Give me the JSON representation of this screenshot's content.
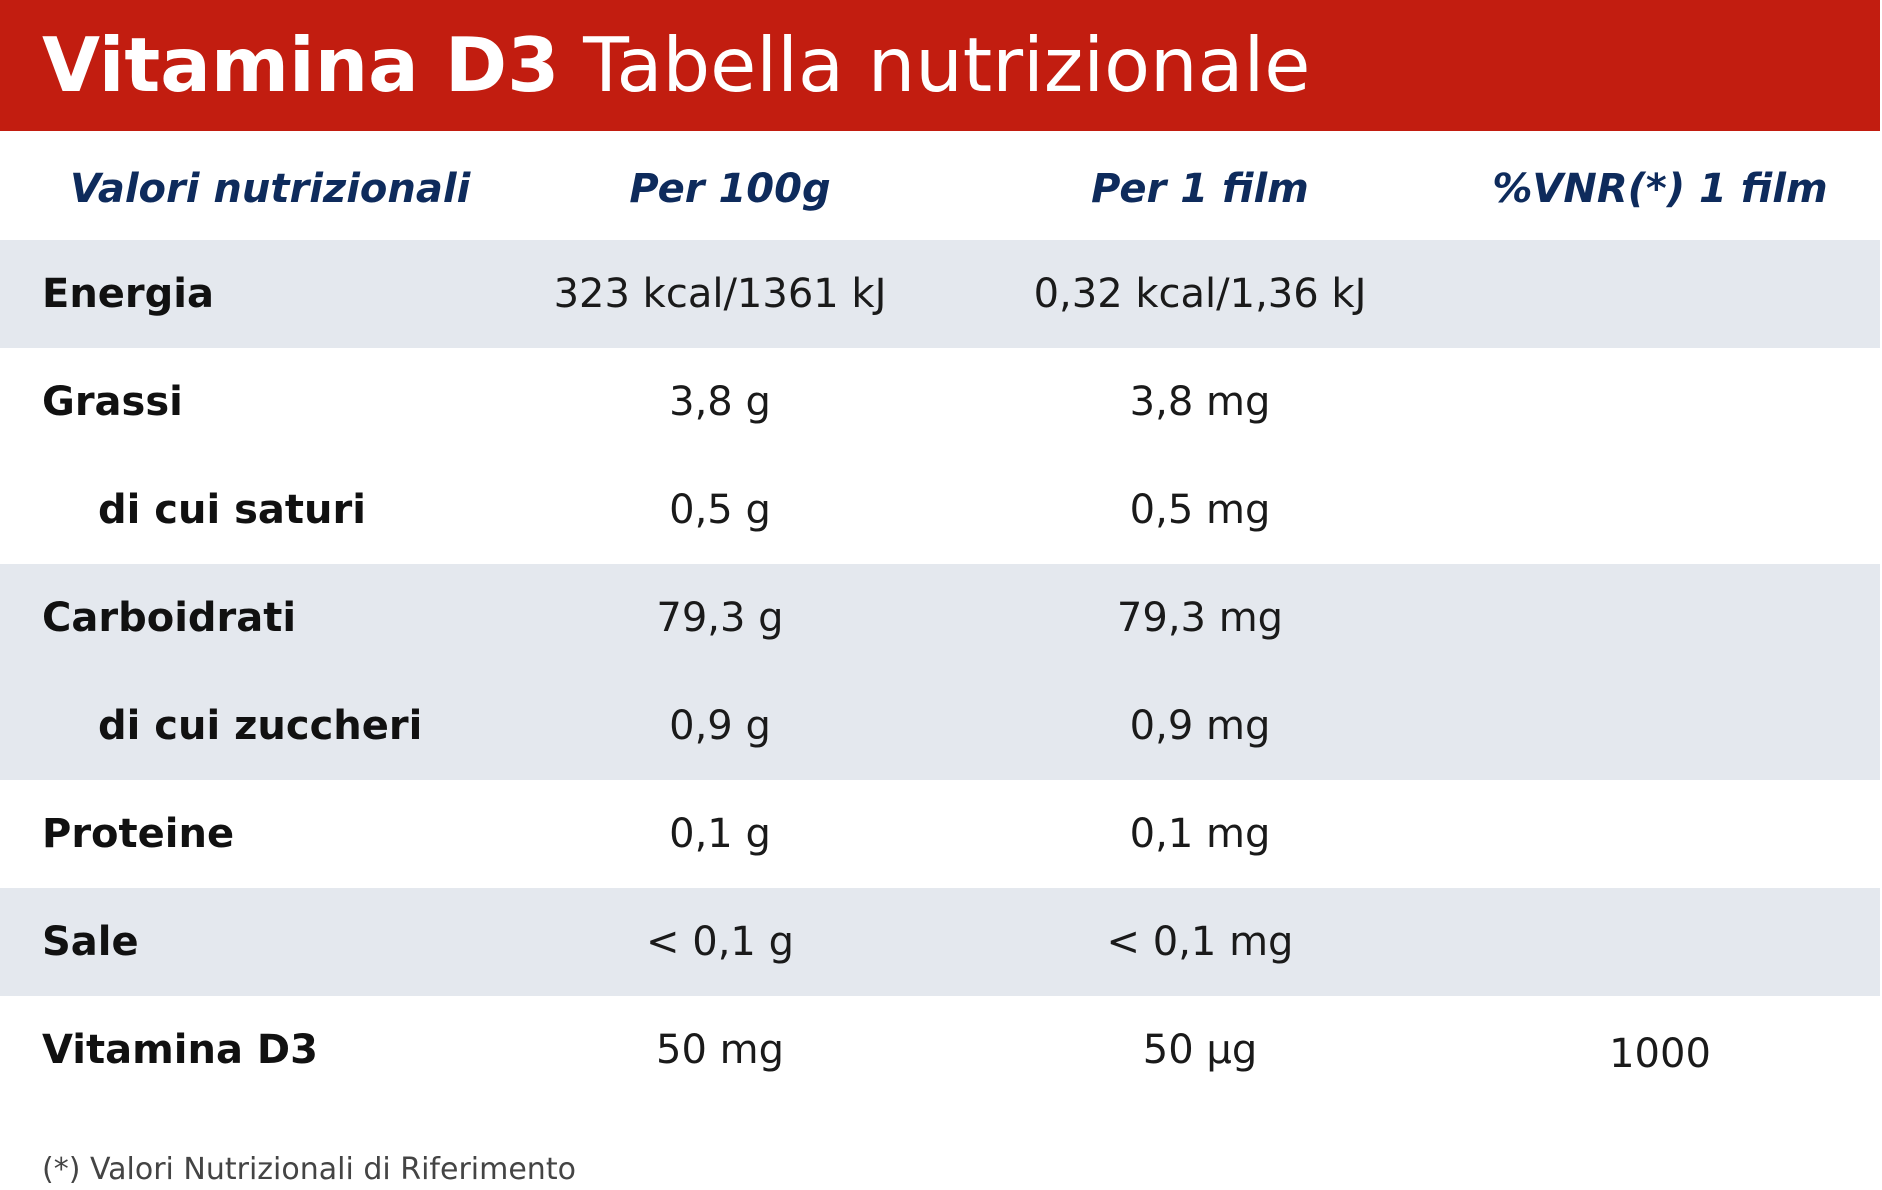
{
  "header": {
    "title_bold": "Vitamina D3",
    "title_light": "Tabella nutrizionale",
    "background_color": "#c21d10"
  },
  "columns": {
    "label": "Valori nutrizionali",
    "per_100g": "Per 100g",
    "per_film": "Per 1 film",
    "vnr": "%VNR(*) 1 film"
  },
  "rows": [
    {
      "label": "Energia",
      "per_100g": "323 kcal/1361 kJ",
      "per_film": "0,32 kcal/1,36 kJ",
      "vnr": ""
    },
    {
      "label": "Grassi",
      "per_100g": "3,8 g",
      "per_film": "3,8 mg",
      "vnr": ""
    },
    {
      "label": "di cui saturi",
      "per_100g": "0,5 g",
      "per_film": "0,5 mg",
      "vnr": ""
    },
    {
      "label": "Carboidrati",
      "per_100g": "79,3 g",
      "per_film": "79,3 mg",
      "vnr": ""
    },
    {
      "label": "di cui zuccheri",
      "per_100g": "0,9 g",
      "per_film": "0,9 mg",
      "vnr": ""
    },
    {
      "label": "Proteine",
      "per_100g": "0,1 g",
      "per_film": "0,1 mg",
      "vnr": ""
    },
    {
      "label": "Sale",
      "per_100g": "< 0,1 g",
      "per_film": "< 0,1 mg",
      "vnr": ""
    },
    {
      "label": "Vitamina D3",
      "per_100g": "50 mg",
      "per_film": "50 µg",
      "vnr": "1000"
    }
  ],
  "footnote": "(*) Valori Nutrizionali di Riferimento",
  "colors": {
    "column_header_text": "#0e2b5c",
    "shaded_row": "#e4e8ee"
  }
}
